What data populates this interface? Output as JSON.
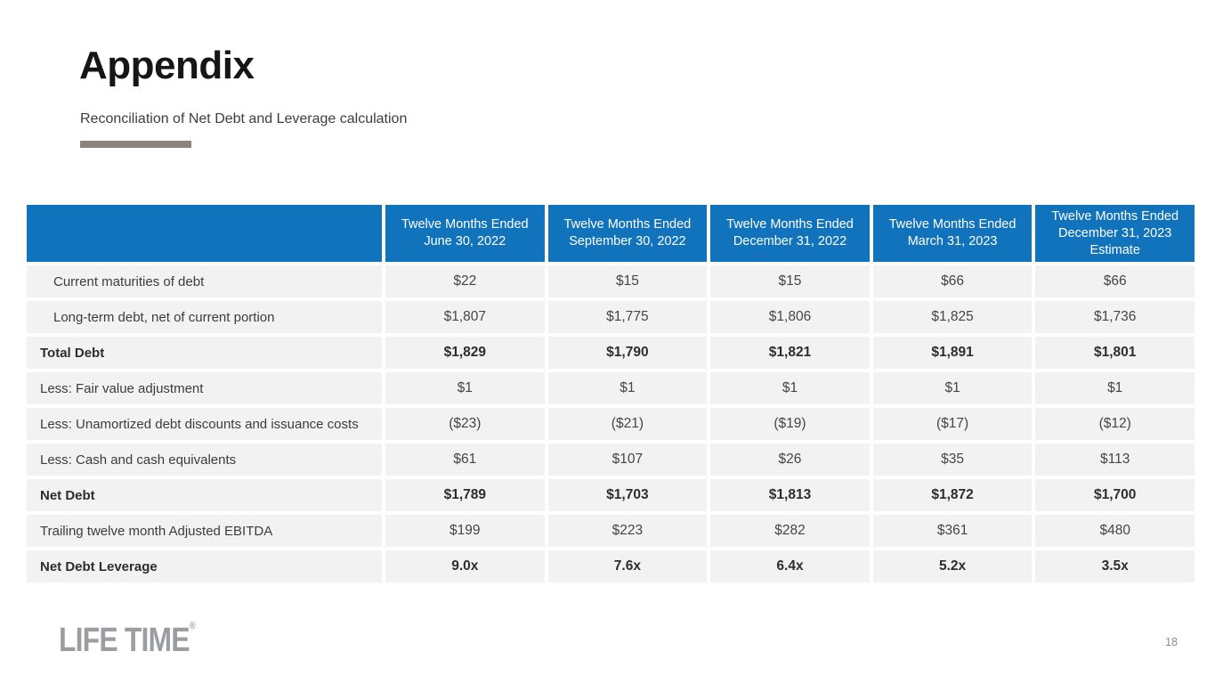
{
  "slide": {
    "title": "Appendix",
    "subtitle": "Reconciliation of Net Debt and Leverage calculation",
    "logo_text": "LIFE TIME",
    "logo_reg_mark": "®",
    "page_number": "18"
  },
  "colors": {
    "header_blue": "#1173bb",
    "row_gray": "#f2f2f3",
    "accent_bar_taupe": "#8c837a",
    "logo_gray": "#9b9ea1"
  },
  "chart_data": {
    "type": "table",
    "title": "Reconciliation of Net Debt and Leverage calculation",
    "columns": [
      "",
      "Twelve Months Ended June 30, 2022",
      "Twelve Months Ended September 30, 2022",
      "Twelve Months Ended December 31, 2022",
      "Twelve Months Ended March 31, 2023",
      "Twelve Months Ended December 31, 2023 Estimate"
    ],
    "rows": [
      {
        "label": "Current maturities of debt",
        "indent": true,
        "bold": false,
        "values": [
          "$22",
          "$15",
          "$15",
          "$66",
          "$66"
        ]
      },
      {
        "label": "Long-term debt, net of current portion",
        "indent": true,
        "bold": false,
        "values": [
          "$1,807",
          "$1,775",
          "$1,806",
          "$1,825",
          "$1,736"
        ]
      },
      {
        "label": "Total Debt",
        "indent": false,
        "bold": true,
        "values": [
          "$1,829",
          "$1,790",
          "$1,821",
          "$1,891",
          "$1,801"
        ]
      },
      {
        "label": "Less: Fair value adjustment",
        "indent": false,
        "bold": false,
        "values": [
          "$1",
          "$1",
          "$1",
          "$1",
          "$1"
        ]
      },
      {
        "label": "Less: Unamortized debt discounts and issuance costs",
        "indent": false,
        "bold": false,
        "values": [
          "($23)",
          "($21)",
          "($19)",
          "($17)",
          "($12)"
        ]
      },
      {
        "label": "Less: Cash and cash equivalents",
        "indent": false,
        "bold": false,
        "values": [
          "$61",
          "$107",
          "$26",
          "$35",
          "$113"
        ]
      },
      {
        "label": "Net Debt",
        "indent": false,
        "bold": true,
        "values": [
          "$1,789",
          "$1,703",
          "$1,813",
          "$1,872",
          "$1,700"
        ]
      },
      {
        "label": "Trailing twelve month Adjusted EBITDA",
        "indent": false,
        "bold": false,
        "values": [
          "$199",
          "$223",
          "$282",
          "$361",
          "$480"
        ]
      },
      {
        "label": "Net Debt Leverage",
        "indent": false,
        "bold": true,
        "values": [
          "9.0x",
          "7.6x",
          "6.4x",
          "5.2x",
          "3.5x"
        ]
      }
    ]
  }
}
